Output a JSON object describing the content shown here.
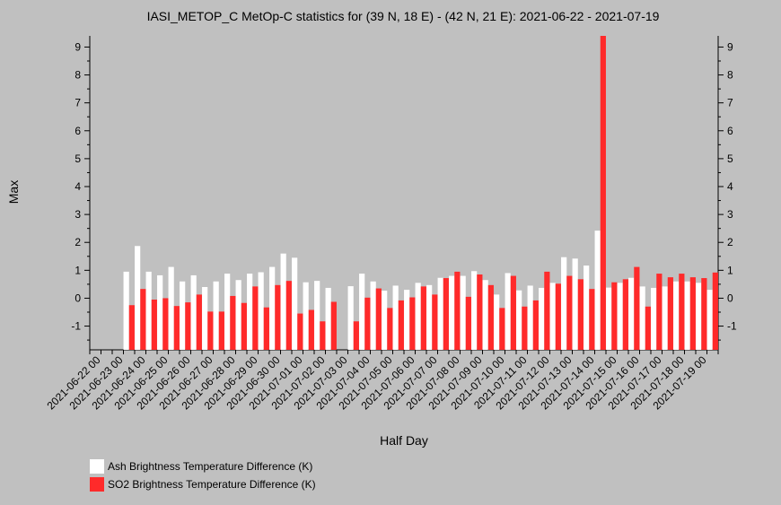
{
  "chart_data": {
    "type": "bar",
    "title": "IASI_METOP_C MetOp-C statistics for (39 N, 18 E) - (42 N, 21 E): 2021-06-22 - 2021-07-19",
    "xlabel": "Half Day",
    "ylabel": "Max",
    "ylim": [
      -1.85,
      9.4
    ],
    "yticks": [
      "-1",
      "0",
      "1",
      "2",
      "3",
      "4",
      "5",
      "6",
      "7",
      "8",
      "9"
    ],
    "grid": false,
    "legend_position": "bottom-left",
    "categories": [
      "2021-06-22 00",
      "2021-06-22 12",
      "2021-06-23 00",
      "2021-06-23 12",
      "2021-06-24 00",
      "2021-06-24 12",
      "2021-06-25 00",
      "2021-06-25 12",
      "2021-06-26 00",
      "2021-06-26 12",
      "2021-06-27 00",
      "2021-06-27 12",
      "2021-06-28 00",
      "2021-06-28 12",
      "2021-06-29 00",
      "2021-06-29 12",
      "2021-06-30 00",
      "2021-06-30 12",
      "2021-07-01 00",
      "2021-07-01 12",
      "2021-07-02 00",
      "2021-07-02 12",
      "2021-07-03 00",
      "2021-07-03 12",
      "2021-07-04 00",
      "2021-07-04 12",
      "2021-07-05 00",
      "2021-07-05 12",
      "2021-07-06 00",
      "2021-07-06 12",
      "2021-07-07 00",
      "2021-07-07 12",
      "2021-07-08 00",
      "2021-07-08 12",
      "2021-07-09 00",
      "2021-07-09 12",
      "2021-07-10 00",
      "2021-07-10 12",
      "2021-07-11 00",
      "2021-07-11 12",
      "2021-07-12 00",
      "2021-07-12 12",
      "2021-07-13 00",
      "2021-07-13 12",
      "2021-07-14 00",
      "2021-07-14 12",
      "2021-07-15 00",
      "2021-07-15 12",
      "2021-07-16 00",
      "2021-07-16 12",
      "2021-07-17 00",
      "2021-07-17 12",
      "2021-07-18 00",
      "2021-07-18 12",
      "2021-07-19 00",
      "2021-07-19 12"
    ],
    "xtick_labels": [
      "2021-06-22 00",
      "2021-06-23 00",
      "2021-06-24 00",
      "2021-06-25 00",
      "2021-06-26 00",
      "2021-06-27 00",
      "2021-06-28 00",
      "2021-06-29 00",
      "2021-06-30 00",
      "2021-07-01 00",
      "2021-07-02 00",
      "2021-07-03 00",
      "2021-07-04 00",
      "2021-07-05 00",
      "2021-07-06 00",
      "2021-07-07 00",
      "2021-07-08 00",
      "2021-07-09 00",
      "2021-07-10 00",
      "2021-07-11 00",
      "2021-07-12 00",
      "2021-07-13 00",
      "2021-07-14 00",
      "2021-07-15 00",
      "2021-07-16 00",
      "2021-07-17 00",
      "2021-07-18 00",
      "2021-07-19 00"
    ],
    "series": [
      {
        "name": "Ash Brightness Temperature Difference (K)",
        "color": "#ffffff",
        "values": [
          null,
          null,
          null,
          0.95,
          1.87,
          0.95,
          0.82,
          1.12,
          0.6,
          0.82,
          0.4,
          0.6,
          0.88,
          0.65,
          0.88,
          0.93,
          1.12,
          1.6,
          1.45,
          0.57,
          0.62,
          0.37,
          null,
          0.43,
          0.88,
          0.6,
          0.27,
          0.45,
          0.3,
          0.55,
          0.47,
          0.73,
          0.8,
          0.8,
          0.97,
          0.65,
          0.13,
          0.9,
          0.28,
          0.45,
          0.37,
          0.55,
          1.47,
          1.42,
          1.17,
          2.42,
          0.38,
          0.55,
          0.73,
          0.42,
          0.37,
          0.42,
          0.6,
          0.6,
          0.55,
          0.3
        ]
      },
      {
        "name": "SO2 Brightness Temperature Difference (K)",
        "color": "#ff2a2a",
        "values": [
          null,
          null,
          null,
          -0.25,
          0.33,
          -0.05,
          0.0,
          -0.28,
          -0.15,
          0.13,
          -0.48,
          -0.48,
          0.08,
          -0.17,
          0.42,
          -0.33,
          0.47,
          0.62,
          -0.55,
          -0.42,
          -0.83,
          -0.13,
          null,
          -0.83,
          0.02,
          0.35,
          -0.35,
          -0.08,
          0.03,
          0.42,
          0.13,
          0.72,
          0.95,
          0.05,
          0.85,
          0.47,
          -0.35,
          0.8,
          -0.3,
          -0.08,
          0.95,
          0.52,
          0.8,
          0.68,
          0.33,
          9.4,
          0.57,
          0.68,
          1.12,
          -0.3,
          0.88,
          0.75,
          0.88,
          0.75,
          0.72,
          0.92
        ]
      }
    ]
  }
}
